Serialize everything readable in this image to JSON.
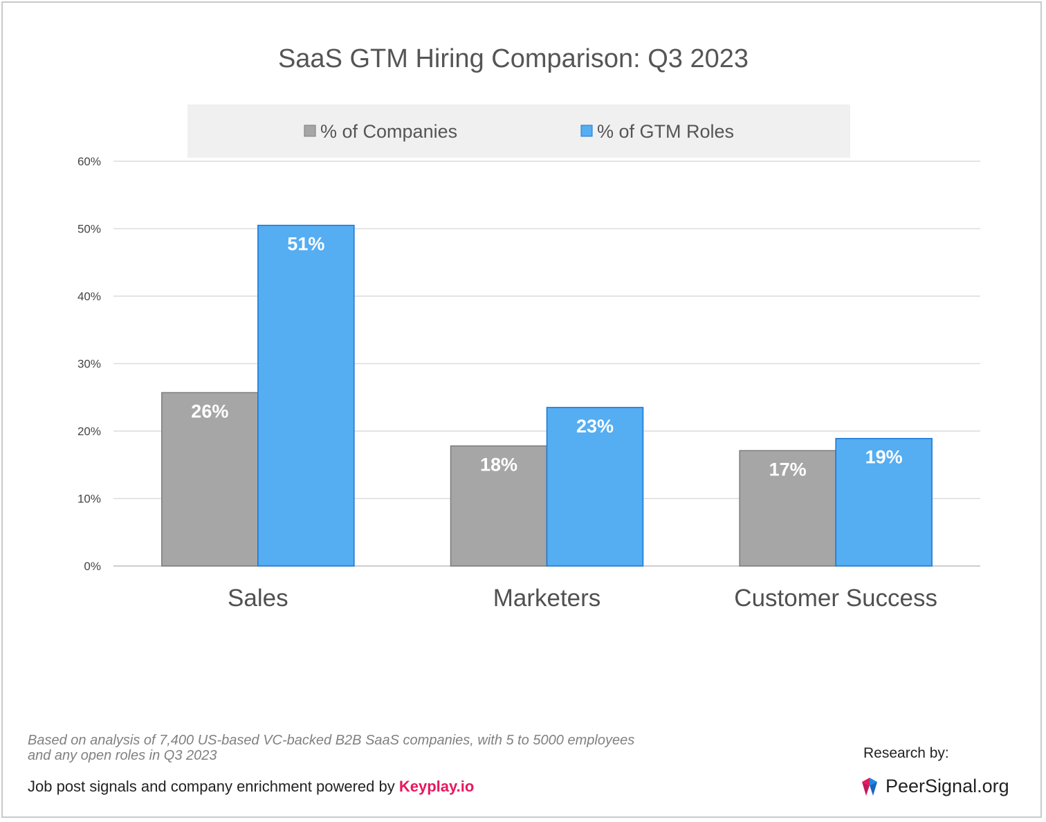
{
  "chart_data": {
    "type": "bar",
    "title": "SaaS GTM Hiring Comparison: Q3 2023",
    "categories": [
      "Sales",
      "Marketers",
      "Customer Success"
    ],
    "series": [
      {
        "name": "% of Companies",
        "values": [
          25.7,
          17.8,
          17.1
        ],
        "labels": [
          "26%",
          "18%",
          "17%"
        ],
        "color": "#a6a6a6"
      },
      {
        "name": "% of GTM Roles",
        "values": [
          50.5,
          23.5,
          18.9
        ],
        "labels": [
          "51%",
          "23%",
          "19%"
        ],
        "color": "#55adf2"
      }
    ],
    "yticks": [
      "0%",
      "10%",
      "20%",
      "30%",
      "40%",
      "50%",
      "60%"
    ],
    "ylim": [
      0,
      60
    ],
    "grid": true,
    "legend_position": "top"
  },
  "footer": {
    "note": "Based on analysis of 7,400 US-based VC-backed B2B SaaS companies, with 5 to 5000 employees and any open roles in Q3 2023",
    "powered_text": "Job post signals and company enrichment powered by ",
    "powered_brand": "Keyplay.io",
    "research_label": "Research by:",
    "logo_text": "PeerSignal.org"
  }
}
